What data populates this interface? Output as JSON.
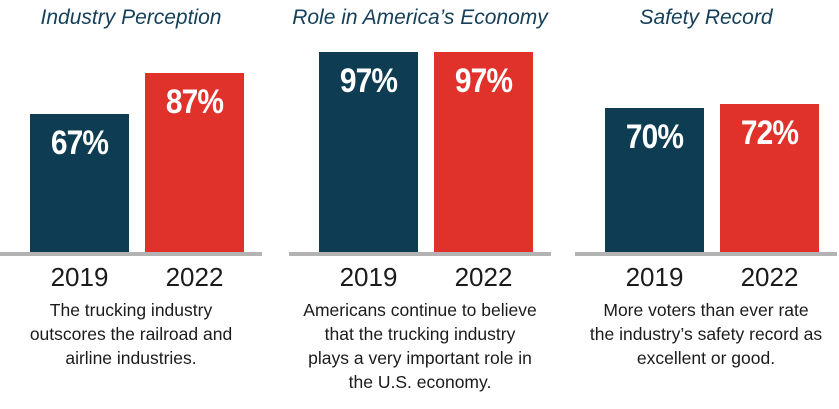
{
  "colors": {
    "series_2019": "#0e3c52",
    "series_2022": "#e0312b",
    "baseline": "#b3b3b3",
    "title": "#16405a"
  },
  "chart_data": [
    {
      "type": "bar",
      "title": "Industry Perception",
      "categories": [
        "2019",
        "2022"
      ],
      "values": [
        67,
        87
      ],
      "value_labels": [
        "67%",
        "87%"
      ],
      "ylim": [
        0,
        97
      ],
      "caption": [
        "The trucking industry",
        "outscores the railroad and",
        "airline industries."
      ]
    },
    {
      "type": "bar",
      "title": "Role in America’s Economy",
      "categories": [
        "2019",
        "2022"
      ],
      "values": [
        97,
        97
      ],
      "value_labels": [
        "97%",
        "97%"
      ],
      "ylim": [
        0,
        97
      ],
      "caption": [
        "Americans continue to believe",
        "that the trucking industry",
        "plays a very important role in",
        "the U.S. economy."
      ]
    },
    {
      "type": "bar",
      "title": "Safety Record",
      "categories": [
        "2019",
        "2022"
      ],
      "values": [
        70,
        72
      ],
      "value_labels": [
        "70%",
        "72%"
      ],
      "ylim": [
        0,
        97
      ],
      "caption": [
        "More voters than ever rate",
        "the industry’s safety record as",
        "excellent or good."
      ]
    }
  ]
}
